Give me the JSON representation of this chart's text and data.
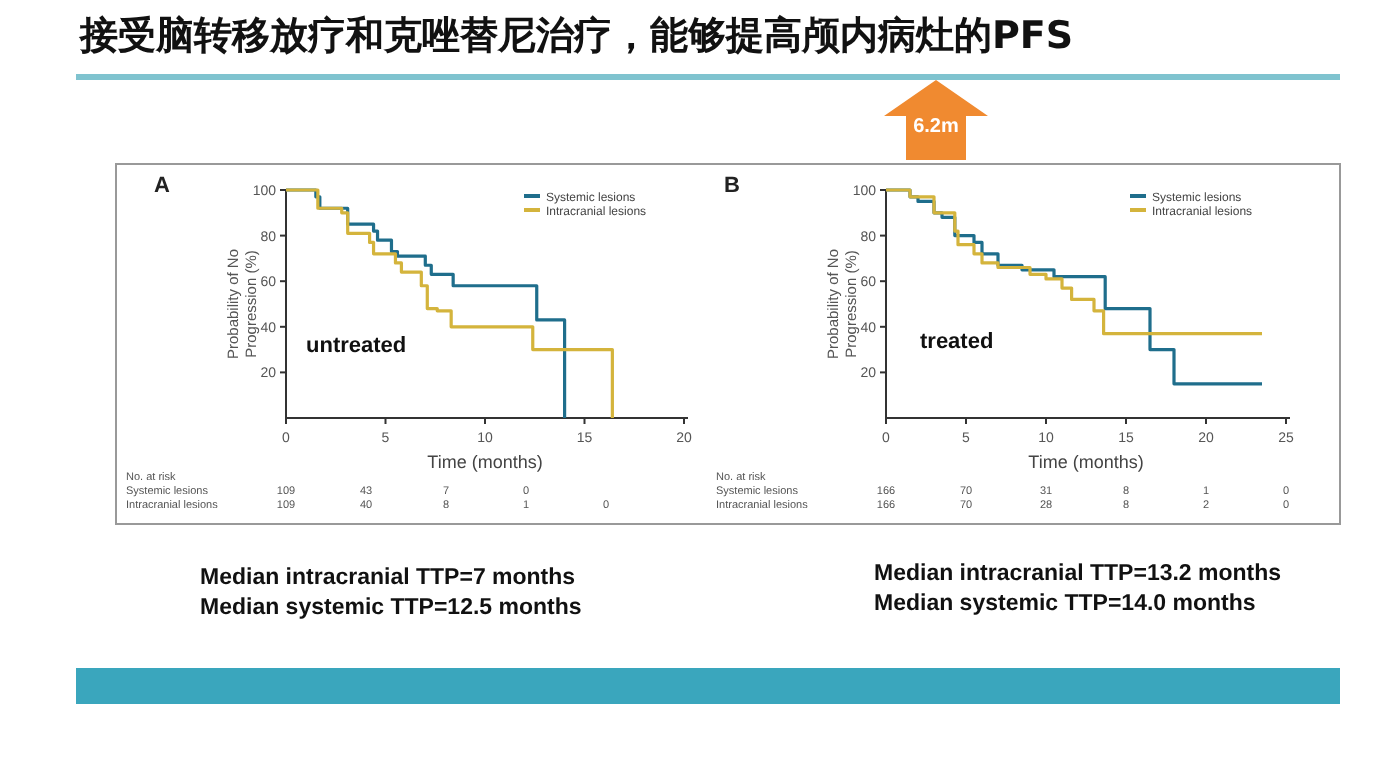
{
  "chart_data": [
    {
      "type": "step",
      "title": "接受脑转移放疗和克唑替尼治疗，能够提高颅内病灶的PFS",
      "subtitle": "A",
      "xlabel": "Time (months)",
      "ylabel": "Probability of No Progression (%)",
      "xlim": [
        0,
        20
      ],
      "ylim": [
        0,
        100
      ],
      "xticks": [
        0,
        5,
        10,
        15,
        20
      ],
      "yticks": [
        20,
        40,
        60,
        80,
        100
      ],
      "legend": "top right",
      "series": [
        {
          "name": "Systemic lesions",
          "color": "#1f6e8c",
          "x": [
            0,
            1.5,
            1.7,
            3.1,
            4.4,
            4.6,
            5.3,
            5.6,
            7.0,
            7.3,
            8.4,
            12.6,
            14.0
          ],
          "values": [
            100,
            97,
            92,
            85,
            82,
            78,
            73,
            71,
            67,
            63,
            58,
            43,
            0
          ]
        },
        {
          "name": "Intracranial lesions",
          "color": "#d4b43c",
          "x": [
            0,
            1.6,
            2.8,
            3.1,
            4.2,
            4.4,
            5.5,
            5.8,
            6.8,
            7.1,
            7.6,
            8.3,
            12.4,
            16.4
          ],
          "values": [
            100,
            92,
            90,
            81,
            77,
            72,
            68,
            64,
            58,
            48,
            47,
            40,
            30,
            0
          ]
        }
      ],
      "annotations": [
        "No. at risk",
        "Systemic lesions",
        "109",
        "43",
        "7",
        "0",
        "Intracranial lesions",
        "109",
        "40",
        "8",
        "1",
        "0",
        "untreated",
        "Median intracranial TTP=7 months",
        "Median systemic TTP=12.5 months"
      ]
    },
    {
      "type": "step",
      "subtitle": "B",
      "xlabel": "Time (months)",
      "ylabel": "Probability of No Progression (%)",
      "xlim": [
        0,
        25
      ],
      "ylim": [
        0,
        100
      ],
      "xticks": [
        0,
        5,
        10,
        15,
        20,
        25
      ],
      "yticks": [
        20,
        40,
        60,
        80,
        100
      ],
      "legend": "top right",
      "series": [
        {
          "name": "Systemic lesions",
          "color": "#1f6e8c",
          "x": [
            0,
            1.5,
            2.0,
            3.0,
            3.5,
            4.3,
            5.5,
            6.0,
            7.0,
            8.5,
            10.5,
            13.7,
            16.5,
            18.0,
            23.5
          ],
          "values": [
            100,
            97,
            95,
            90,
            88,
            80,
            77,
            72,
            67,
            65,
            62,
            48,
            30,
            15,
            15
          ]
        },
        {
          "name": "Intracranial lesions",
          "color": "#d4b43c",
          "x": [
            0,
            1.5,
            3.0,
            4.3,
            4.5,
            5.5,
            6.0,
            7.0,
            9.0,
            10.0,
            11.0,
            11.6,
            13.0,
            13.6,
            23.5
          ],
          "values": [
            100,
            97,
            90,
            82,
            76,
            72,
            68,
            66,
            63,
            61,
            57,
            52,
            47,
            37,
            37
          ]
        }
      ],
      "annotations": [
        "No. at risk",
        "Systemic lesions",
        "166",
        "70",
        "31",
        "8",
        "1",
        "0",
        "Intracranial lesions",
        "166",
        "70",
        "28",
        "8",
        "2",
        "0",
        "treated",
        "Median intracranial TTP=13.2 months",
        "Median systemic TTP=14.0 months",
        "6.2m"
      ]
    }
  ]
}
